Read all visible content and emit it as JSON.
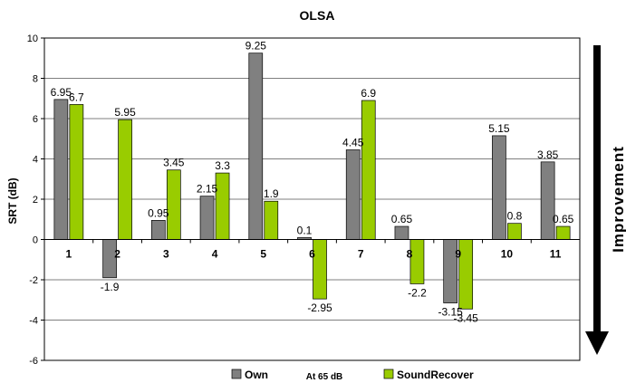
{
  "chart_data": {
    "type": "bar",
    "title": "OLSA",
    "ylabel": "SRT (dB)",
    "xlabel": "",
    "categories": [
      "1",
      "2",
      "3",
      "4",
      "5",
      "6",
      "7",
      "8",
      "9",
      "10",
      "11"
    ],
    "series": [
      {
        "name": "Own",
        "color": "#808080",
        "values": [
          6.95,
          -1.9,
          0.95,
          2.15,
          9.25,
          0.1,
          4.45,
          0.65,
          -3.15,
          5.15,
          3.85
        ],
        "labels": [
          "6.95",
          "-1.9",
          "0.95",
          "2.15",
          "9.25",
          "0.1",
          "4.45",
          "0.65",
          "-3.15",
          "5.15",
          "3.85"
        ]
      },
      {
        "name": "SoundRecover",
        "color": "#99cc00",
        "values": [
          6.7,
          5.95,
          3.45,
          3.3,
          1.9,
          -2.95,
          6.9,
          -2.2,
          -3.45,
          0.8,
          0.65
        ],
        "labels": [
          "6.7",
          "5.95",
          "3.45",
          "3.3",
          "1.9",
          "-2.95",
          "6.9",
          "-2.2",
          "-3.45",
          "0.8",
          "0.65"
        ]
      }
    ],
    "ylim": [
      -6,
      10
    ],
    "yticks": [
      "-6",
      "-4",
      "-2",
      "0",
      "2",
      "4",
      "6",
      "8",
      "10"
    ],
    "grid": true,
    "legend_placement": "bottom",
    "legend_note": "At 65 dB",
    "annotation": "Improvement"
  }
}
